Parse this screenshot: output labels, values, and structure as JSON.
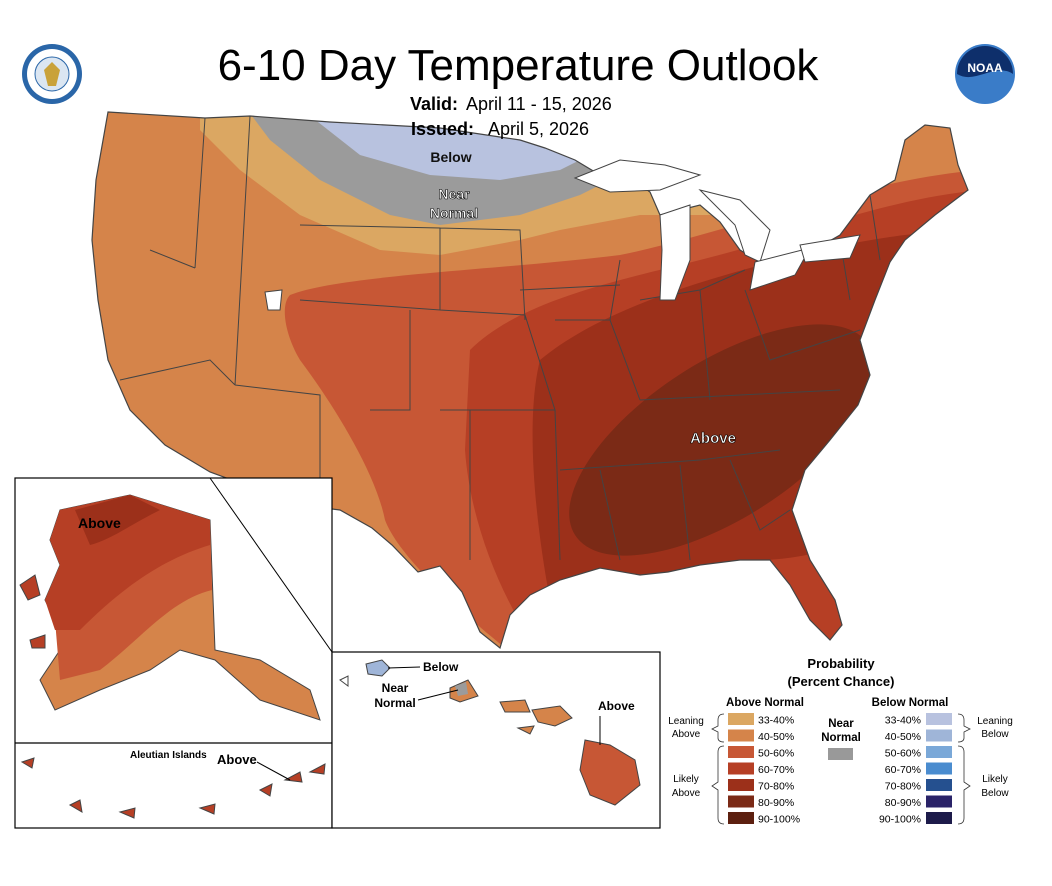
{
  "header": {
    "title": "6-10 Day Temperature Outlook",
    "valid_label": "Valid:",
    "valid_value": "April 11 - 15, 2026",
    "issued_label": "Issued:",
    "issued_value": "April 5, 2026",
    "left_logo": "department-of-commerce-seal",
    "right_logo": "NOAA"
  },
  "map_labels": {
    "conus_below": "Below",
    "conus_near": "Near",
    "conus_normal": "Normal",
    "conus_above": "Above",
    "alaska_above": "Above",
    "aleutian_title": "Aleutian Islands",
    "aleutian_above": "Above",
    "hawaii_below": "Below",
    "hawaii_near": "Near",
    "hawaii_normal": "Normal",
    "hawaii_above": "Above"
  },
  "legend": {
    "title": "Probability",
    "subtitle": "(Percent Chance)",
    "above_header": "Above Normal",
    "below_header": "Below Normal",
    "near_line1": "Near",
    "near_line2": "Normal",
    "near_color": "#999999",
    "leaning_above": [
      "Leaning",
      "Above"
    ],
    "likely_above": [
      "Likely",
      "Above"
    ],
    "leaning_below": [
      "Leaning",
      "Below"
    ],
    "likely_below": [
      "Likely",
      "Below"
    ],
    "above": [
      {
        "label": "33-40%",
        "color": "#dba762"
      },
      {
        "label": "40-50%",
        "color": "#d5844a"
      },
      {
        "label": "50-60%",
        "color": "#c75735"
      },
      {
        "label": "60-70%",
        "color": "#b63f25"
      },
      {
        "label": "70-80%",
        "color": "#9c301a"
      },
      {
        "label": "80-90%",
        "color": "#7b2a16"
      },
      {
        "label": "90-100%",
        "color": "#5c1f0f"
      }
    ],
    "below": [
      {
        "label": "33-40%",
        "color": "#b8c2df"
      },
      {
        "label": "40-50%",
        "color": "#9fb5d8"
      },
      {
        "label": "50-60%",
        "color": "#7aa8d8"
      },
      {
        "label": "60-70%",
        "color": "#4a8ccf"
      },
      {
        "label": "70-80%",
        "color": "#25508f"
      },
      {
        "label": "80-90%",
        "color": "#2a2368"
      },
      {
        "label": "90-100%",
        "color": "#1d1b4a"
      }
    ]
  }
}
